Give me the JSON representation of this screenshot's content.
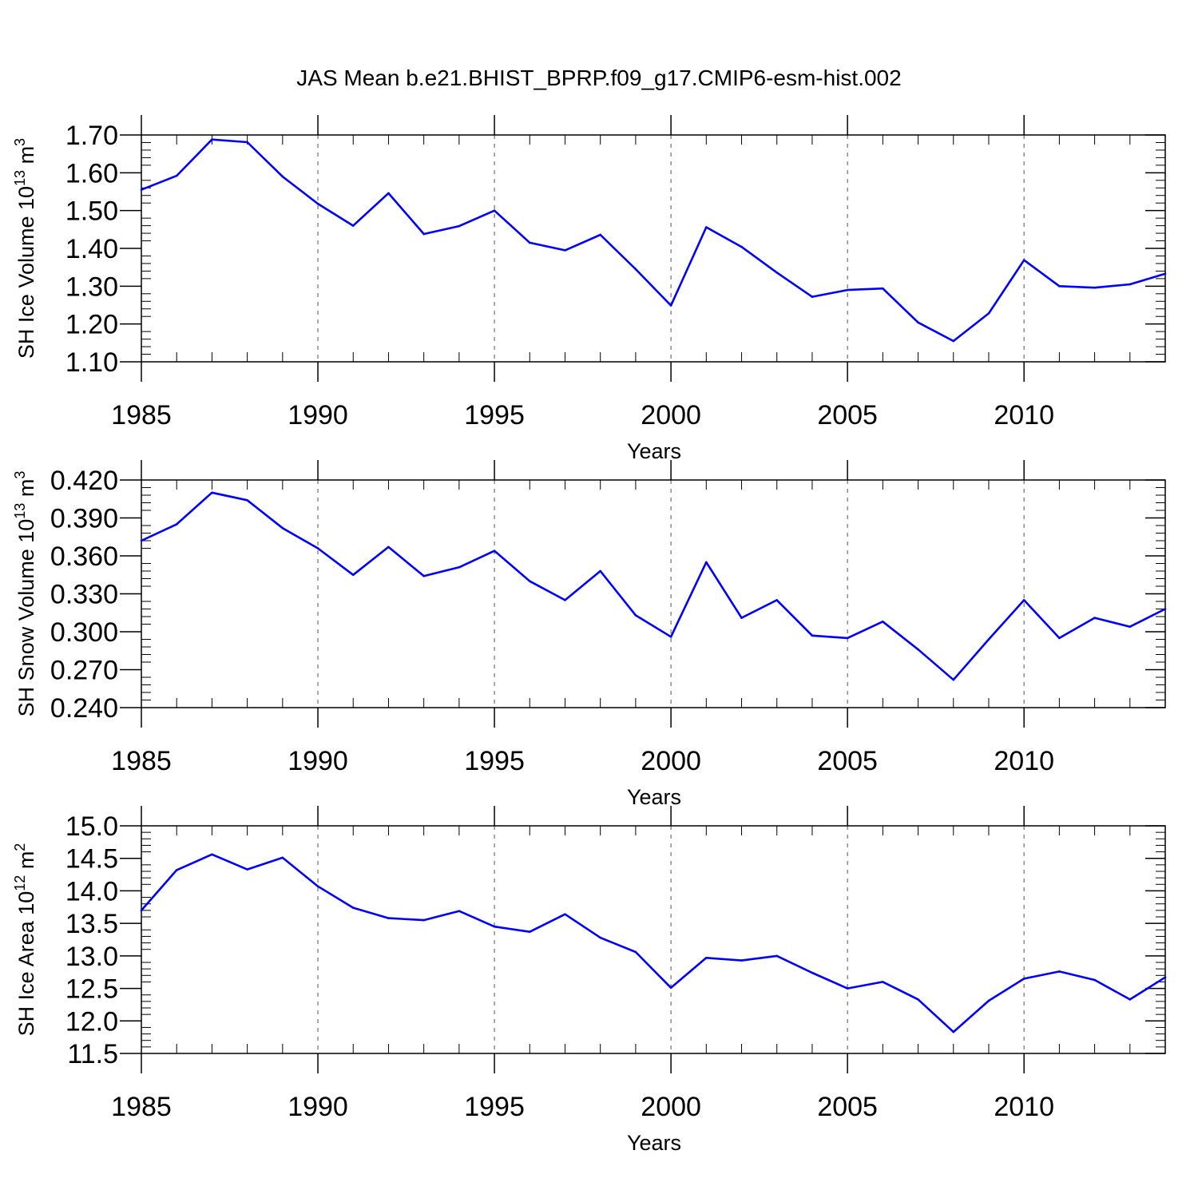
{
  "figure": {
    "title": "JAS Mean b.e21.BHIST_BPRP.f09_g17.CMIP6-esm-hist.002"
  },
  "chart_data": [
    {
      "type": "line",
      "ylabel": "SH Ice Volume 10",
      "ylabel_sup": "13",
      "ylabel_unit": " m",
      "ylabel_unit_sup": "3",
      "xlabel": "Years",
      "xlim": [
        1985,
        2014
      ],
      "ylim": [
        1.1,
        1.7
      ],
      "yticks": [
        "1.10",
        "1.20",
        "1.30",
        "1.40",
        "1.50",
        "1.60",
        "1.70"
      ],
      "xticks": [
        "1985",
        "1990",
        "1995",
        "2000",
        "2005",
        "2010"
      ],
      "grid": "vertical dashed at major x ticks",
      "line_color": "#0000ff",
      "x": [
        1985,
        1986,
        1987,
        1988,
        1989,
        1990,
        1991,
        1992,
        1993,
        1994,
        1995,
        1996,
        1997,
        1998,
        1999,
        2000,
        2001,
        2002,
        2003,
        2004,
        2005,
        2006,
        2007,
        2008,
        2009,
        2010,
        2011,
        2012,
        2013,
        2014
      ],
      "y": [
        1.555,
        1.592,
        1.688,
        1.681,
        1.59,
        1.518,
        1.46,
        1.546,
        1.438,
        1.459,
        1.5,
        1.415,
        1.395,
        1.436,
        1.345,
        1.249,
        1.456,
        1.404,
        1.336,
        1.272,
        1.29,
        1.294,
        1.204,
        1.155,
        1.228,
        1.369,
        1.3,
        1.296,
        1.305,
        1.333
      ]
    },
    {
      "type": "line",
      "ylabel": "SH Snow Volume 10",
      "ylabel_sup": "13",
      "ylabel_unit": " m",
      "ylabel_unit_sup": "3",
      "xlabel": "Years",
      "xlim": [
        1985,
        2014
      ],
      "ylim": [
        0.24,
        0.42
      ],
      "yticks": [
        "0.240",
        "0.270",
        "0.300",
        "0.330",
        "0.360",
        "0.390",
        "0.420"
      ],
      "xticks": [
        "1985",
        "1990",
        "1995",
        "2000",
        "2005",
        "2010"
      ],
      "grid": "vertical dashed at major x ticks",
      "line_color": "#0000ff",
      "x": [
        1985,
        1986,
        1987,
        1988,
        1989,
        1990,
        1991,
        1992,
        1993,
        1994,
        1995,
        1996,
        1997,
        1998,
        1999,
        2000,
        2001,
        2002,
        2003,
        2004,
        2005,
        2006,
        2007,
        2008,
        2009,
        2010,
        2011,
        2012,
        2013,
        2014
      ],
      "y": [
        0.372,
        0.385,
        0.41,
        0.404,
        0.382,
        0.366,
        0.345,
        0.367,
        0.344,
        0.351,
        0.364,
        0.34,
        0.325,
        0.348,
        0.313,
        0.296,
        0.355,
        0.311,
        0.325,
        0.297,
        0.295,
        0.308,
        0.286,
        0.262,
        0.294,
        0.325,
        0.295,
        0.311,
        0.304,
        0.318
      ]
    },
    {
      "type": "line",
      "ylabel": "SH Ice Area 10",
      "ylabel_sup": "12",
      "ylabel_unit": " m",
      "ylabel_unit_sup": "2",
      "xlabel": "Years",
      "xlim": [
        1985,
        2014
      ],
      "ylim": [
        11.5,
        15.0
      ],
      "yticks": [
        "11.5",
        "12.0",
        "12.5",
        "13.0",
        "13.5",
        "14.0",
        "14.5",
        "15.0"
      ],
      "xticks": [
        "1985",
        "1990",
        "1995",
        "2000",
        "2005",
        "2010"
      ],
      "grid": "vertical dashed at major x ticks",
      "line_color": "#0000ff",
      "x": [
        1985,
        1986,
        1987,
        1988,
        1989,
        1990,
        1991,
        1992,
        1993,
        1994,
        1995,
        1996,
        1997,
        1998,
        1999,
        2000,
        2001,
        2002,
        2003,
        2004,
        2005,
        2006,
        2007,
        2008,
        2009,
        2010,
        2011,
        2012,
        2013,
        2014
      ],
      "y": [
        13.7,
        14.32,
        14.56,
        14.33,
        14.51,
        14.07,
        13.74,
        13.58,
        13.55,
        13.69,
        13.45,
        13.37,
        13.64,
        13.28,
        13.06,
        12.51,
        12.97,
        12.93,
        13.0,
        12.74,
        12.5,
        12.6,
        12.33,
        11.83,
        12.31,
        12.65,
        12.76,
        12.63,
        12.33,
        12.67
      ]
    }
  ]
}
